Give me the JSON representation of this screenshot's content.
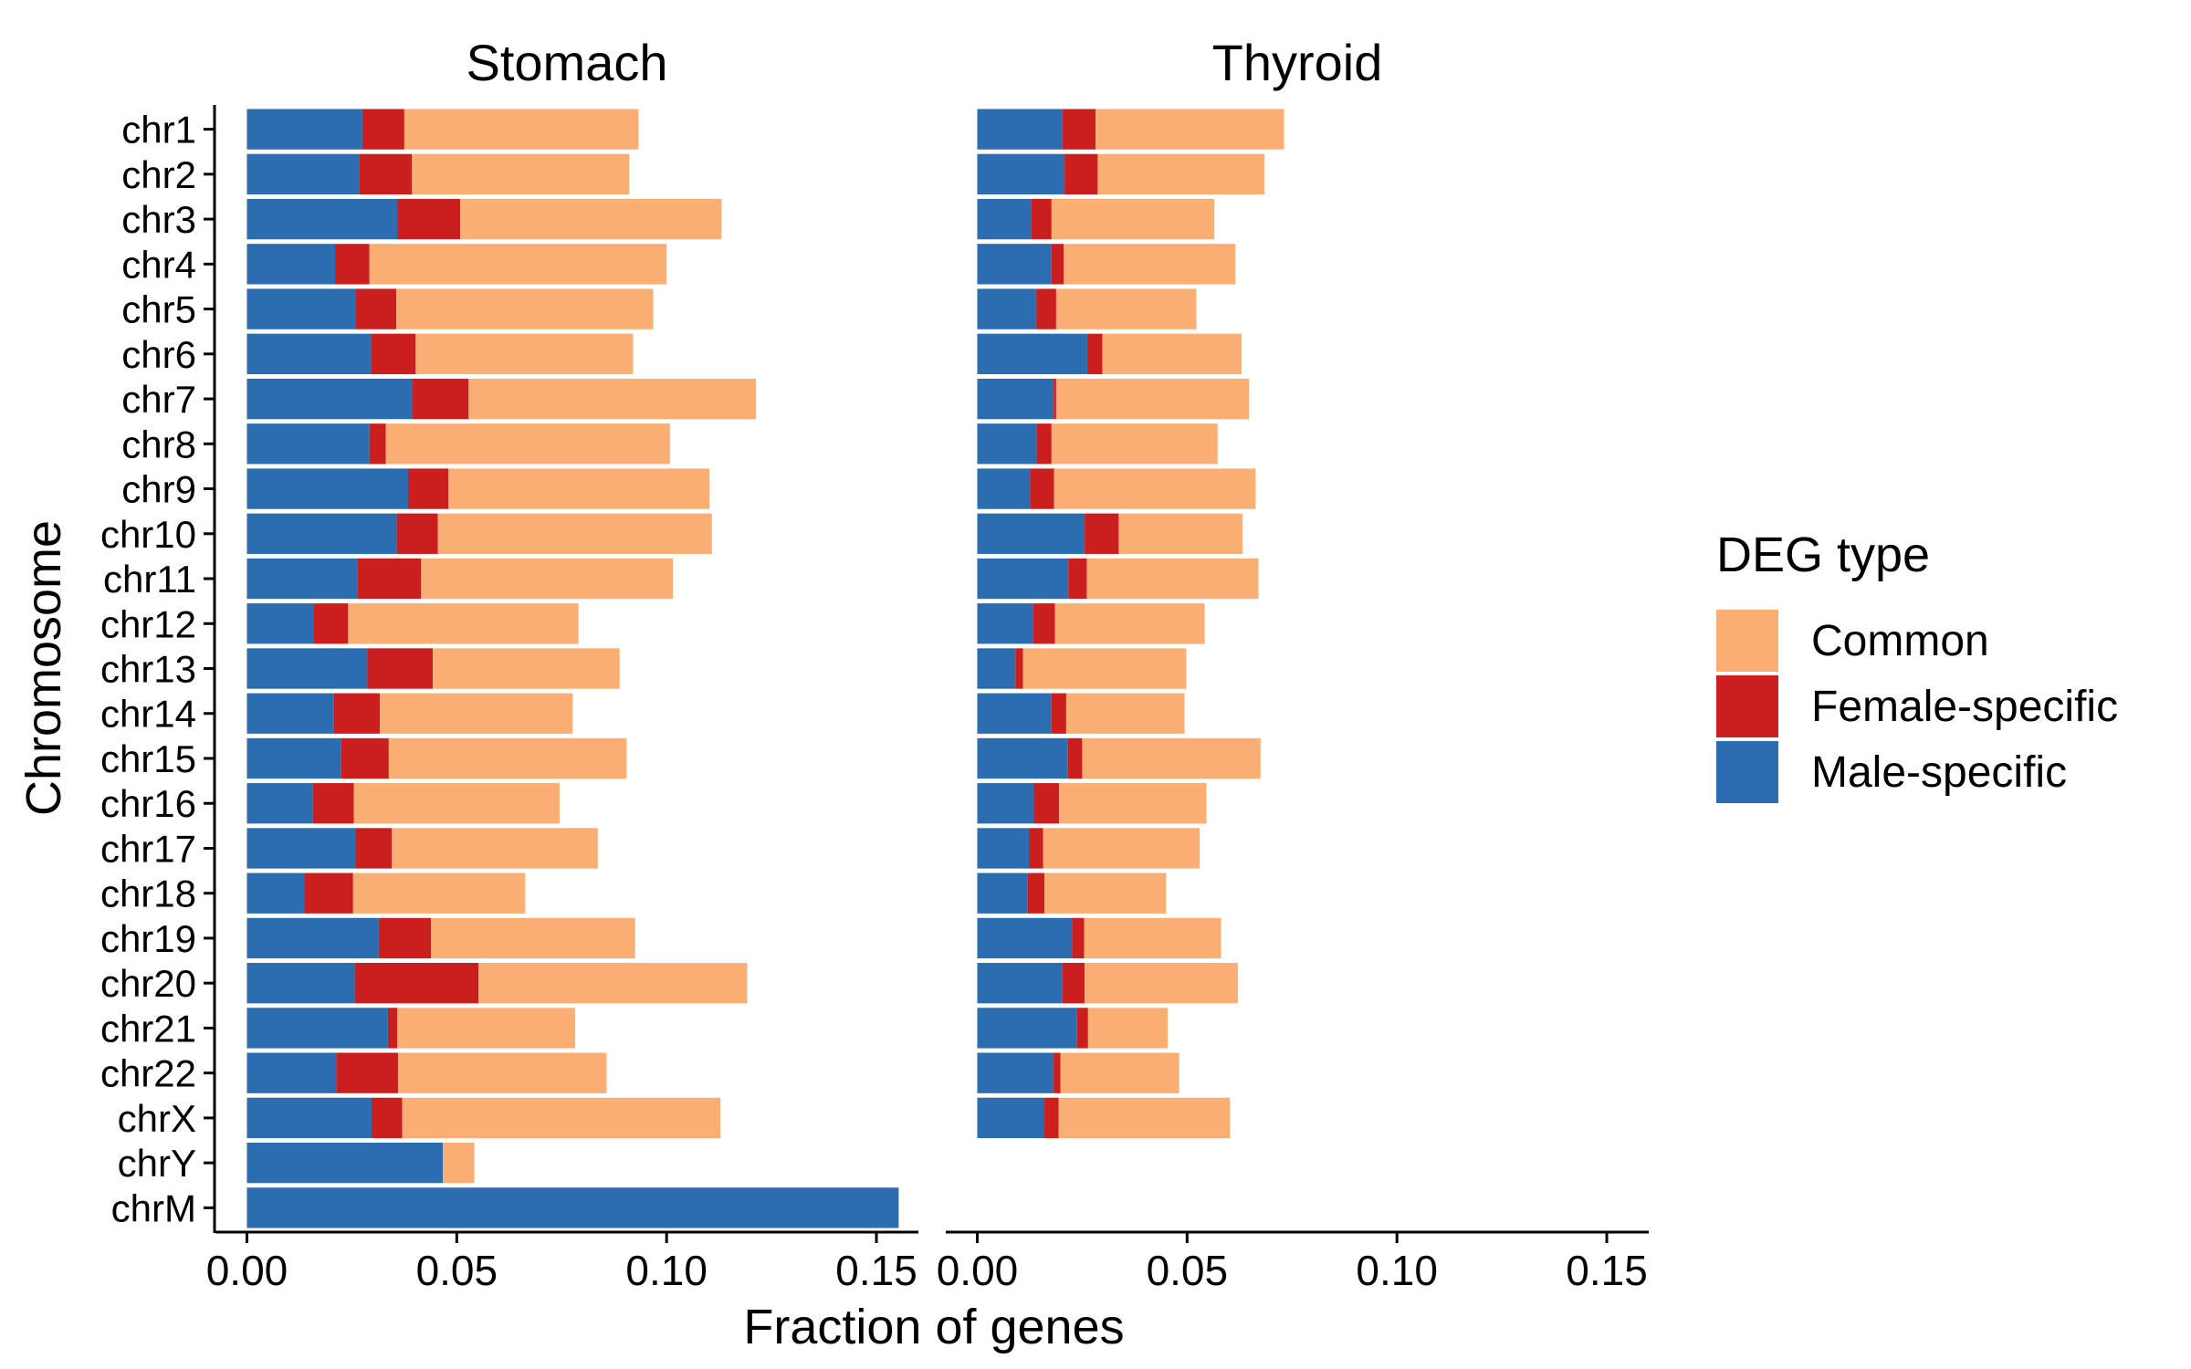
{
  "chart_data": {
    "type": "bar",
    "orientation": "horizontal",
    "stacked": true,
    "xlabel": "Fraction of genes",
    "ylabel": "Chromosome",
    "xlim": [
      -0.0075,
      0.16
    ],
    "x_ticks": [
      0,
      0.05,
      0.1,
      0.15
    ],
    "x_tick_labels": [
      "0.00",
      "0.05",
      "0.10",
      "0.15"
    ],
    "grid": false,
    "categories": [
      "chr1",
      "chr2",
      "chr3",
      "chr4",
      "chr5",
      "chr6",
      "chr7",
      "chr8",
      "chr9",
      "chr10",
      "chr11",
      "chr12",
      "chr13",
      "chr14",
      "chr15",
      "chr16",
      "chr17",
      "chr18",
      "chr19",
      "chr20",
      "chr21",
      "chr22",
      "chrX",
      "chrY",
      "chrM"
    ],
    "legend": {
      "title": "DEG type",
      "placement": "right",
      "entries": [
        {
          "name": "Common",
          "color": "#FBAE73"
        },
        {
          "name": "Female-specific",
          "color": "#CB1E1E"
        },
        {
          "name": "Male-specific",
          "color": "#2B6DB0"
        }
      ]
    },
    "series_order": [
      "Male-specific",
      "Female-specific",
      "Common"
    ],
    "panels": [
      {
        "title": "Stomach",
        "series": [
          {
            "name": "Male-specific",
            "values": [
              0.0275,
              0.0267,
              0.0358,
              0.021,
              0.026,
              0.0296,
              0.0393,
              0.0292,
              0.0384,
              0.0357,
              0.0263,
              0.0158,
              0.0287,
              0.0207,
              0.0225,
              0.0157,
              0.0258,
              0.0137,
              0.0314,
              0.0257,
              0.0336,
              0.0213,
              0.0297,
              0.0467,
              0.1553
            ]
          },
          {
            "name": "Female-specific",
            "values": [
              0.01,
              0.0126,
              0.015,
              0.0082,
              0.0096,
              0.0106,
              0.0135,
              0.0039,
              0.0096,
              0.0098,
              0.0152,
              0.0083,
              0.0156,
              0.011,
              0.0113,
              0.0098,
              0.0087,
              0.0116,
              0.0125,
              0.0295,
              0.0022,
              0.0147,
              0.0073,
              0.0,
              0.0
            ]
          },
          {
            "name": "Common",
            "values": [
              0.0558,
              0.0518,
              0.0623,
              0.0708,
              0.0612,
              0.0518,
              0.0685,
              0.0677,
              0.0622,
              0.0653,
              0.06,
              0.0549,
              0.0445,
              0.0459,
              0.0567,
              0.049,
              0.0491,
              0.041,
              0.0486,
              0.064,
              0.0424,
              0.0497,
              0.0758,
              0.0075,
              0.0
            ]
          }
        ]
      },
      {
        "title": "Thyroid",
        "series": [
          {
            "name": "Male-specific",
            "values": [
              0.0203,
              0.0208,
              0.0128,
              0.0177,
              0.014,
              0.0262,
              0.0182,
              0.0141,
              0.0126,
              0.0256,
              0.0217,
              0.0133,
              0.0091,
              0.0177,
              0.0216,
              0.0135,
              0.0123,
              0.012,
              0.0226,
              0.0203,
              0.0238,
              0.0182,
              0.016,
              0.0,
              0.0
            ]
          },
          {
            "name": "Female-specific",
            "values": [
              0.0079,
              0.0079,
              0.0049,
              0.0029,
              0.0048,
              0.0036,
              0.0006,
              0.0036,
              0.0057,
              0.0081,
              0.0044,
              0.0052,
              0.0018,
              0.0035,
              0.0034,
              0.006,
              0.0034,
              0.004,
              0.0029,
              0.0053,
              0.0026,
              0.0016,
              0.0034,
              0.0,
              0.0
            ]
          },
          {
            "name": "Common",
            "values": [
              0.0449,
              0.0397,
              0.0388,
              0.0409,
              0.0334,
              0.0332,
              0.046,
              0.0396,
              0.048,
              0.0295,
              0.0409,
              0.0357,
              0.0389,
              0.0282,
              0.0425,
              0.0351,
              0.0373,
              0.029,
              0.0326,
              0.0365,
              0.019,
              0.0283,
              0.0408,
              0.0,
              0.0
            ]
          }
        ]
      }
    ]
  }
}
